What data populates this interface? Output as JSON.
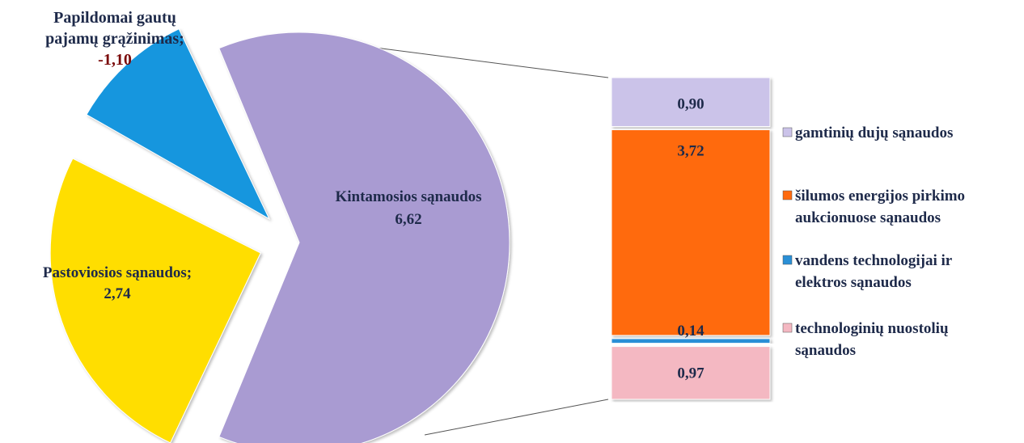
{
  "chart_data": [
    {
      "type": "pie",
      "categories": [
        "Kintamosios sąnaudos",
        "Pastoviosios sąnaudos;",
        "Papildomai gautų pajamų grąžinimas;"
      ],
      "values": [
        6.62,
        2.74,
        -1.1
      ],
      "value_labels": [
        "6,62",
        "2,74",
        "-1,10"
      ],
      "slice_label_lines": [
        [
          "Kintamosios sąnaudos",
          "6,62"
        ],
        [
          "Pastoviosios sąnaudos;",
          "2,74"
        ],
        [
          "Papildomai gautų",
          "pajamų grąžinimas;",
          "-1,10"
        ]
      ],
      "colors": [
        "#a99bd2",
        "#ffde00",
        "#1596de"
      ],
      "exploded": true
    },
    {
      "type": "bar",
      "stacked": true,
      "series": [
        {
          "name": "gamtinių dujų sąnaudos",
          "value": 0.9,
          "label": "0,90",
          "color": "#cbc3e9"
        },
        {
          "name": "šilumos energijos pirkimo aukcionuose sąnaudos",
          "value": 3.72,
          "label": "3,72",
          "color": "#ff6a0e"
        },
        {
          "name": "vandens technologijai ir elektros sąnaudos",
          "value": 0.14,
          "label": "0,14",
          "color": "#2a8fd6"
        },
        {
          "name": "technologinių nuostolių sąnaudos",
          "value": 0.97,
          "label": "0,97",
          "color": "#f4b8c2"
        }
      ],
      "legend_lines": [
        [
          "gamtinių dujų sąnaudos"
        ],
        [
          "šilumos energijos pirkimo",
          "aukcionuose sąnaudos"
        ],
        [
          "vandens technologijai ir",
          "elektros sąnaudos"
        ],
        [
          "technologinių nuostolių",
          "sąnaudos"
        ]
      ],
      "legend_position": "right"
    }
  ]
}
